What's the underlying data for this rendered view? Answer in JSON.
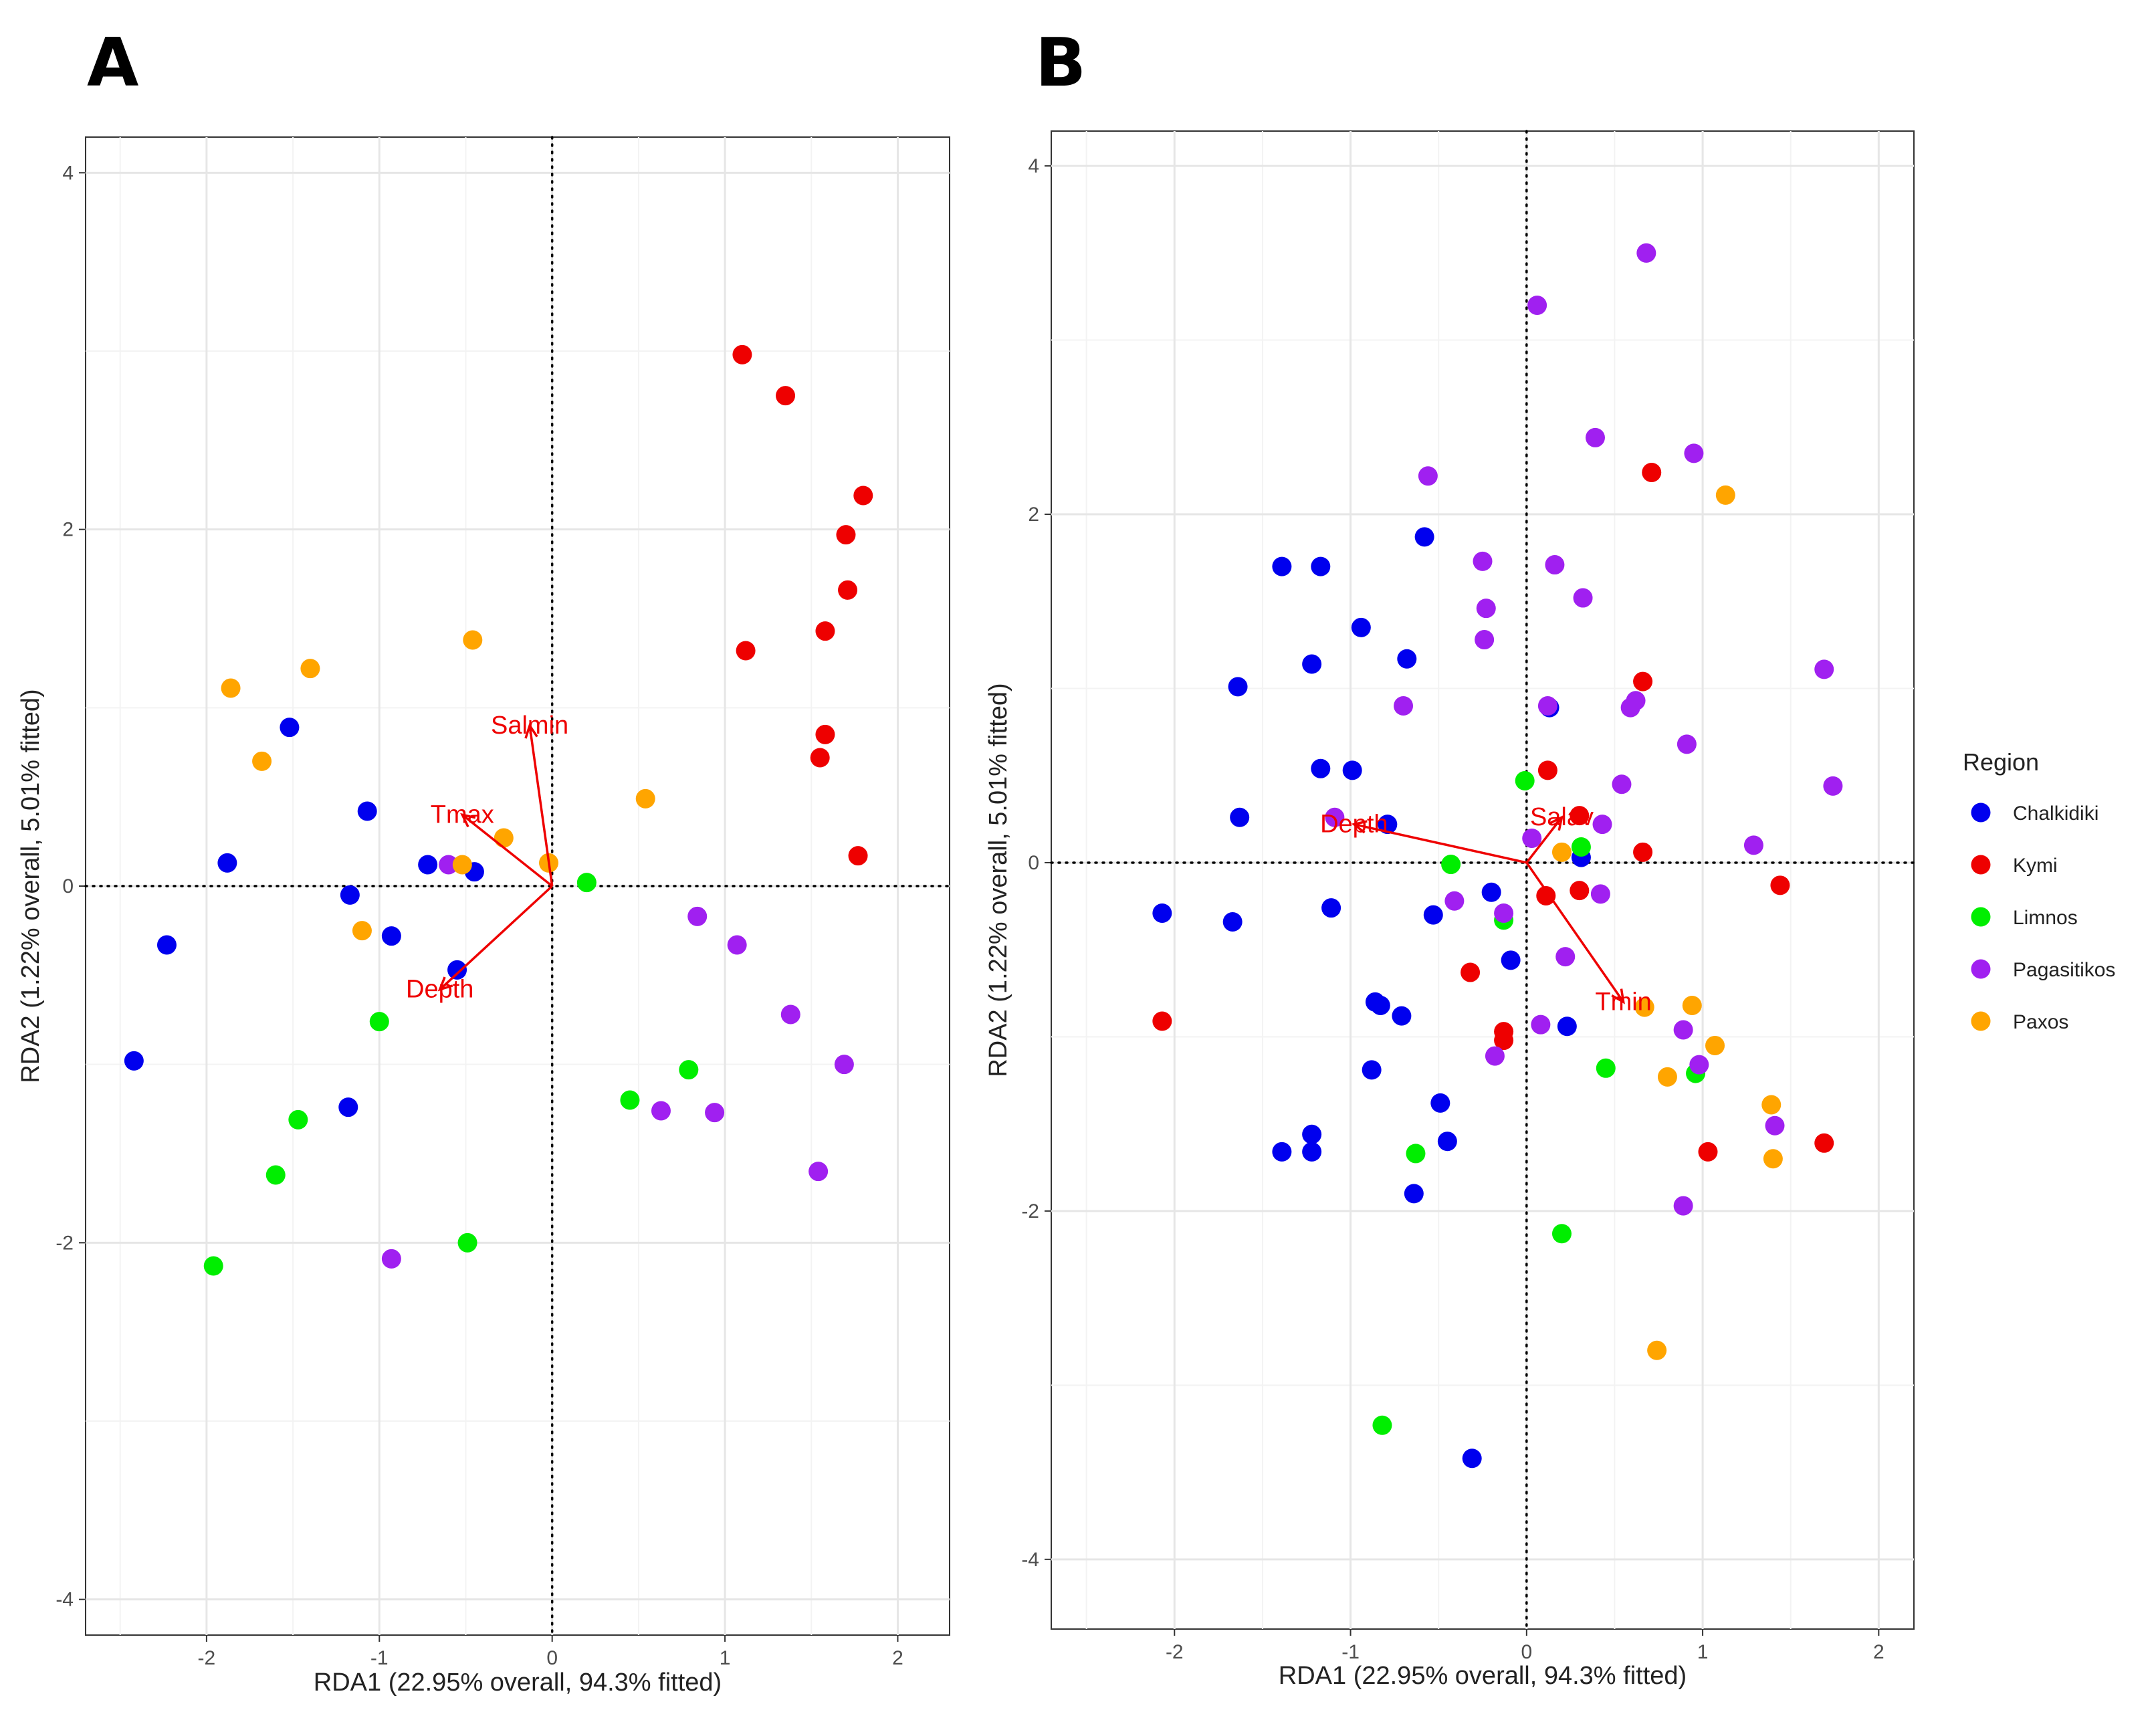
{
  "figure": {
    "legend_title": "Region",
    "regions": [
      {
        "name": "Chalkidiki",
        "color": "#0000ee"
      },
      {
        "name": "Kymi",
        "color": "#ee0000"
      },
      {
        "name": "Limnos",
        "color": "#00ee00"
      },
      {
        "name": "Pagasitikos",
        "color": "#a020f0"
      },
      {
        "name": "Paxos",
        "color": "#ffa500"
      }
    ],
    "arrow_color": "#ee0000"
  },
  "chart_data": [
    {
      "panel": "A",
      "type": "scatter",
      "xlabel": "RDA1 (22.95% overall, 94.3% fitted)",
      "ylabel": "RDA2 (1.22% overall, 5.01% fitted)",
      "xlim": [
        -2.7,
        2.3
      ],
      "ylim": [
        -4.2,
        4.2
      ],
      "xticks": [
        -2,
        -1,
        0,
        1,
        2
      ],
      "yticks": [
        -4,
        -2,
        0,
        2,
        4
      ],
      "grid": true,
      "vectors": [
        {
          "label": "Salmin",
          "x": -0.13,
          "y": 0.9
        },
        {
          "label": "Tmax",
          "x": -0.52,
          "y": 0.4
        },
        {
          "label": "Depth",
          "x": -0.65,
          "y": -0.58
        }
      ],
      "series": [
        {
          "name": "Chalkidiki",
          "points": [
            [
              -2.42,
              -0.98
            ],
            [
              -2.23,
              -0.33
            ],
            [
              -1.88,
              0.13
            ],
            [
              -1.52,
              0.89
            ],
            [
              -1.07,
              0.42
            ],
            [
              -1.17,
              -0.05
            ],
            [
              -1.18,
              -1.24
            ],
            [
              -0.93,
              -0.28
            ],
            [
              -0.72,
              0.12
            ],
            [
              -0.45,
              0.08
            ],
            [
              -0.55,
              -0.47
            ]
          ]
        },
        {
          "name": "Kymi",
          "points": [
            [
              1.1,
              2.98
            ],
            [
              1.35,
              2.75
            ],
            [
              1.8,
              2.19
            ],
            [
              1.7,
              1.97
            ],
            [
              1.71,
              1.66
            ],
            [
              1.58,
              1.43
            ],
            [
              1.12,
              1.32
            ],
            [
              1.58,
              0.85
            ],
            [
              1.55,
              0.72
            ],
            [
              1.77,
              0.17
            ]
          ]
        },
        {
          "name": "Limnos",
          "points": [
            [
              0.2,
              0.02
            ],
            [
              -1.0,
              -0.76
            ],
            [
              -1.47,
              -1.31
            ],
            [
              -1.6,
              -1.62
            ],
            [
              -1.96,
              -2.13
            ],
            [
              -0.49,
              -2.0
            ],
            [
              0.45,
              -1.2
            ],
            [
              0.79,
              -1.03
            ]
          ]
        },
        {
          "name": "Pagasitikos",
          "points": [
            [
              -0.6,
              0.12
            ],
            [
              0.84,
              -0.17
            ],
            [
              1.07,
              -0.33
            ],
            [
              1.38,
              -0.72
            ],
            [
              1.69,
              -1.0
            ],
            [
              1.54,
              -1.6
            ],
            [
              0.63,
              -1.26
            ],
            [
              0.94,
              -1.27
            ],
            [
              -0.93,
              -2.09
            ]
          ]
        },
        {
          "name": "Paxos",
          "points": [
            [
              -1.86,
              1.11
            ],
            [
              -1.4,
              1.22
            ],
            [
              -1.68,
              0.7
            ],
            [
              -0.46,
              1.38
            ],
            [
              0.54,
              0.49
            ],
            [
              -0.28,
              0.27
            ],
            [
              -0.02,
              0.13
            ],
            [
              -0.52,
              0.12
            ],
            [
              -1.1,
              -0.25
            ]
          ]
        }
      ]
    },
    {
      "panel": "B",
      "type": "scatter",
      "xlabel": "RDA1 (22.95% overall, 94.3% fitted)",
      "ylabel": "RDA2 (1.22% overall, 5.01% fitted)",
      "xlim": [
        -2.7,
        2.2
      ],
      "ylim": [
        -4.4,
        4.2
      ],
      "xticks": [
        -2,
        -1,
        0,
        1,
        2
      ],
      "yticks": [
        -4,
        -2,
        0,
        2,
        4
      ],
      "grid": true,
      "vectors": [
        {
          "label": "Salav",
          "x": 0.2,
          "y": 0.26
        },
        {
          "label": "Depth",
          "x": -0.98,
          "y": 0.22
        },
        {
          "label": "Tmin",
          "x": 0.55,
          "y": -0.8
        }
      ],
      "series": [
        {
          "name": "Chalkidiki",
          "points": [
            [
              -1.39,
              1.7
            ],
            [
              -1.17,
              1.7
            ],
            [
              -0.58,
              1.87
            ],
            [
              -1.64,
              1.01
            ],
            [
              -1.22,
              1.14
            ],
            [
              -0.94,
              1.35
            ],
            [
              -0.68,
              1.17
            ],
            [
              -1.17,
              0.54
            ],
            [
              -0.99,
              0.53
            ],
            [
              -0.79,
              0.22
            ],
            [
              -1.63,
              0.26
            ],
            [
              -2.07,
              -0.29
            ],
            [
              -1.67,
              -0.34
            ],
            [
              -1.11,
              -0.26
            ],
            [
              -0.53,
              -0.3
            ],
            [
              -0.2,
              -0.17
            ],
            [
              -0.09,
              -0.56
            ],
            [
              0.13,
              0.89
            ],
            [
              0.31,
              0.03
            ],
            [
              0.23,
              -0.94
            ],
            [
              -0.86,
              -0.8
            ],
            [
              -0.83,
              -0.82
            ],
            [
              -0.71,
              -0.88
            ],
            [
              -0.88,
              -1.19
            ],
            [
              -0.49,
              -1.38
            ],
            [
              -0.45,
              -1.6
            ],
            [
              -1.22,
              -1.56
            ],
            [
              -1.39,
              -1.66
            ],
            [
              -1.22,
              -1.66
            ],
            [
              -0.64,
              -1.9
            ],
            [
              -0.31,
              -3.42
            ]
          ]
        },
        {
          "name": "Kymi",
          "points": [
            [
              0.71,
              2.24
            ],
            [
              0.66,
              1.04
            ],
            [
              0.12,
              0.53
            ],
            [
              0.3,
              0.27
            ],
            [
              0.66,
              0.06
            ],
            [
              0.11,
              -0.19
            ],
            [
              0.3,
              -0.16
            ],
            [
              -0.32,
              -0.63
            ],
            [
              -0.13,
              -0.97
            ],
            [
              -0.13,
              -1.02
            ],
            [
              1.44,
              -0.13
            ],
            [
              -2.07,
              -0.91
            ],
            [
              1.03,
              -1.66
            ],
            [
              1.69,
              -1.61
            ]
          ]
        },
        {
          "name": "Limnos",
          "points": [
            [
              -0.01,
              0.47
            ],
            [
              0.31,
              0.09
            ],
            [
              -0.43,
              -0.01
            ],
            [
              -0.13,
              -0.33
            ],
            [
              0.45,
              -1.18
            ],
            [
              0.96,
              -1.21
            ],
            [
              -0.63,
              -1.67
            ],
            [
              0.2,
              -2.13
            ],
            [
              -0.82,
              -3.23
            ]
          ]
        },
        {
          "name": "Pagasitikos",
          "points": [
            [
              0.68,
              3.5
            ],
            [
              0.06,
              3.2
            ],
            [
              0.39,
              2.44
            ],
            [
              0.95,
              2.35
            ],
            [
              -0.56,
              2.22
            ],
            [
              -0.25,
              1.73
            ],
            [
              0.16,
              1.71
            ],
            [
              0.32,
              1.52
            ],
            [
              -0.23,
              1.46
            ],
            [
              -0.24,
              1.28
            ],
            [
              -0.7,
              0.9
            ],
            [
              0.12,
              0.9
            ],
            [
              0.59,
              0.89
            ],
            [
              0.62,
              0.93
            ],
            [
              0.91,
              0.68
            ],
            [
              1.69,
              1.11
            ],
            [
              0.54,
              0.45
            ],
            [
              0.43,
              0.22
            ],
            [
              0.03,
              0.14
            ],
            [
              1.29,
              0.1
            ],
            [
              1.74,
              0.44
            ],
            [
              -1.09,
              0.26
            ],
            [
              0.42,
              -0.18
            ],
            [
              -0.41,
              -0.22
            ],
            [
              -0.13,
              -0.29
            ],
            [
              0.22,
              -0.54
            ],
            [
              0.08,
              -0.93
            ],
            [
              -0.18,
              -1.11
            ],
            [
              0.89,
              -0.96
            ],
            [
              0.98,
              -1.16
            ],
            [
              1.41,
              -1.51
            ],
            [
              0.89,
              -1.97
            ]
          ]
        },
        {
          "name": "Paxos",
          "points": [
            [
              1.13,
              2.11
            ],
            [
              0.2,
              0.06
            ],
            [
              0.67,
              -0.83
            ],
            [
              0.94,
              -0.82
            ],
            [
              1.07,
              -1.05
            ],
            [
              0.8,
              -1.23
            ],
            [
              1.39,
              -1.39
            ],
            [
              1.4,
              -1.7
            ],
            [
              0.74,
              -2.8
            ]
          ]
        }
      ]
    }
  ]
}
